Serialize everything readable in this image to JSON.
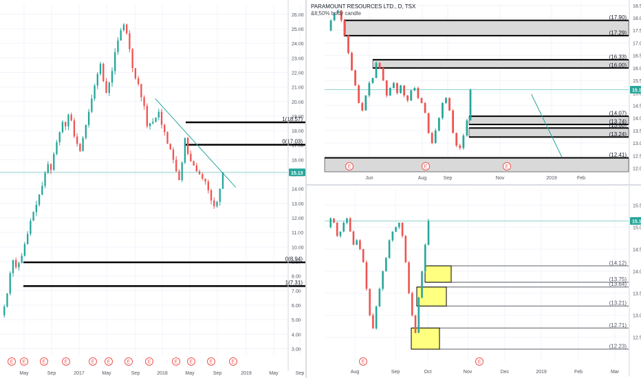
{
  "colors": {
    "up": "#26a69a",
    "down": "#ef5350",
    "price_line": "#26a69a",
    "grid": "#f0f3fa",
    "level_line": "#000000",
    "zone_fill": "#d9d9d9",
    "demand_fill": "#ffff80",
    "earnings_marker": "#ef5350",
    "axis_text": "#50535e"
  },
  "header": {
    "title": "PARAMOUNT RESOURCES LTD., D, TSX",
    "subtitle": "&lt;50% body candle"
  },
  "chart_data": [
    {
      "type": "candlestick",
      "pane": "left",
      "ylim": [
        2.5,
        26.7
      ],
      "y_ticks": [
        "26.00",
        "25.00",
        "24.00",
        "23.00",
        "22.00",
        "21.00",
        "20.00",
        "19.00",
        "18.00",
        "17.00",
        "16.00",
        "15.00",
        "14.00",
        "13.00",
        "12.00",
        "11.00",
        "10.00",
        "9.00",
        "8.00",
        "7.00",
        "6.00",
        "5.00",
        "4.00",
        "3.00"
      ],
      "x_tick_labels": [
        "May",
        "Sep",
        "2017",
        "May",
        "Sep",
        "2018",
        "May",
        "Sep",
        "2019",
        "May",
        "Sep"
      ],
      "last_price": "15.13",
      "price": [
        5.3,
        5.9,
        6.8,
        8.2,
        9.1,
        8.6,
        8.9,
        9.4,
        10.2,
        10.9,
        11.8,
        12.4,
        12.9,
        13.6,
        14.2,
        15.1,
        15.7,
        15.3,
        16.4,
        17.2,
        17.9,
        18.6,
        18.3,
        19.1,
        18.7,
        17.6,
        17.1,
        16.6,
        17.5,
        18.4,
        19.3,
        20.2,
        21.1,
        21.9,
        22.6,
        21.4,
        20.6,
        21.3,
        22.1,
        23.4,
        24.2,
        24.9,
        25.3,
        24.7,
        23.6,
        22.3,
        21.6,
        21.2,
        20.3,
        19.7,
        18.3,
        18.5,
        18.6,
        18.9,
        19.3,
        18.4,
        17.9,
        17.1,
        16.7,
        16.0,
        15.2,
        14.6,
        15.8,
        17.5,
        16.4,
        15.9,
        15.6,
        15.2,
        15.0,
        14.7,
        14.5,
        13.9,
        13.2,
        12.8,
        13.1,
        14.0,
        15.13
      ],
      "levels": [
        {
          "label": "1(18.57)",
          "value": 18.57
        },
        {
          "label": "0(17.03)",
          "value": 17.03
        },
        {
          "label": "0(8.94)",
          "value": 8.94
        },
        {
          "label": "1(7.31)",
          "value": 7.31
        }
      ],
      "trendline": {
        "from": [
          0.54,
          20.2
        ],
        "to": [
          0.82,
          14.1
        ]
      },
      "earnings_markers": [
        "E",
        "E",
        "E",
        "E",
        "E",
        "E",
        "E",
        "E",
        "E",
        "E",
        "E",
        "E"
      ]
    },
    {
      "type": "candlestick",
      "pane": "top-right",
      "ylim": [
        11.85,
        18.55
      ],
      "y_ticks": [
        "18.50",
        "18.00",
        "17.50",
        "17.00",
        "16.50",
        "16.00",
        "15.50",
        "15.00",
        "14.50",
        "14.00",
        "13.50",
        "13.00",
        "12.50",
        "12.00"
      ],
      "x_tick_labels": [
        "Jun",
        "Aug",
        "Sep",
        "Nov",
        "2019",
        "Feb"
      ],
      "last_price": "15.13",
      "price": [
        17.5,
        17.9,
        18.2,
        18.3,
        17.9,
        17.3,
        16.6,
        15.9,
        15.3,
        14.6,
        14.3,
        14.9,
        15.4,
        15.6,
        16.2,
        16.0,
        15.5,
        14.9,
        15.2,
        15.4,
        15.0,
        15.3,
        14.9,
        14.7,
        15.1,
        15.2,
        14.8,
        14.6,
        14.2,
        13.4,
        13.0,
        13.5,
        14.0,
        14.6,
        14.8,
        14.3,
        13.4,
        12.9,
        12.8,
        13.3,
        13.9,
        15.13
      ],
      "zones": [
        {
          "top": "17.90",
          "bottom": "17.29",
          "top_value": 17.9,
          "bottom_value": 17.29
        },
        {
          "top": "16.33",
          "bottom": "16.00",
          "top_value": 16.33,
          "bottom_value": 16.0
        },
        {
          "top": "14.07",
          "bottom": "13.74",
          "top_value": 14.07,
          "bottom_value": 13.74
        },
        {
          "top": "13.60",
          "bottom": "13.24",
          "top_value": 13.6,
          "bottom_value": 13.24
        },
        {
          "top": "12.41",
          "bottom": "",
          "top_value": 12.41,
          "bottom_value": 11.85
        }
      ],
      "trendline": {
        "from": [
          0.68,
          14.95
        ],
        "to": [
          0.78,
          12.45
        ]
      },
      "earnings_markers": [
        "E",
        "E",
        "E"
      ]
    },
    {
      "type": "candlestick",
      "pane": "bottom-right",
      "ylim": [
        11.95,
        15.85
      ],
      "y_ticks": [
        "15.50",
        "15.00",
        "14.50",
        "14.00",
        "13.50",
        "13.00",
        "12.50"
      ],
      "x_tick_labels": [
        "Aug",
        "Sep",
        "Oct",
        "Nov",
        "Dec",
        "2019",
        "Feb",
        "Mar"
      ],
      "last_price": "15.14",
      "price": [
        15.0,
        15.2,
        15.1,
        14.8,
        14.9,
        15.1,
        15.2,
        14.9,
        14.6,
        14.7,
        14.5,
        14.2,
        13.6,
        13.0,
        12.7,
        13.2,
        13.6,
        14.0,
        14.3,
        14.7,
        14.9,
        15.0,
        15.1,
        14.8,
        14.2,
        13.5,
        13.0,
        12.6,
        13.4,
        14.0,
        14.6,
        15.14
      ],
      "zones": [
        {
          "top": "14.12",
          "bottom": "13.75",
          "top_value": 14.12,
          "bottom_value": 13.75
        },
        {
          "top": "13.64",
          "bottom": "13.21",
          "top_value": 13.64,
          "bottom_value": 13.21
        },
        {
          "top": "12.71",
          "bottom": "12.23",
          "top_value": 12.71,
          "bottom_value": 12.23
        }
      ],
      "earnings_markers": [
        "E",
        "E"
      ]
    }
  ]
}
